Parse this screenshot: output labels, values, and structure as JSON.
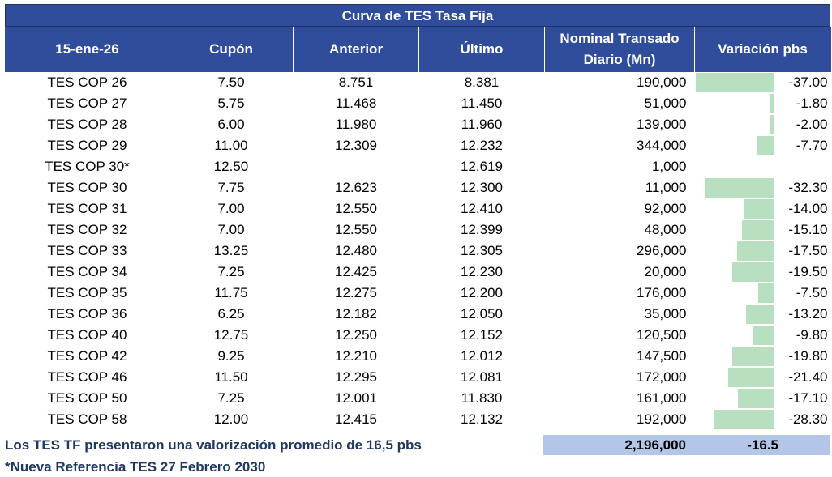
{
  "title": "Curva de TES Tasa Fija",
  "headers": {
    "date": "15-ene-26",
    "cupon": "Cupón",
    "anterior": "Anterior",
    "ultimo": "Último",
    "nominal_line1": "Nominal Transado",
    "nominal_line2": "Diario (Mn)",
    "variacion": "Variación pbs"
  },
  "rows": [
    {
      "name": "TES COP 26",
      "cupon": "7.50",
      "anterior": "8.751",
      "ultimo": "8.381",
      "nominal": "190,000",
      "variacion": "-37.00",
      "var_value": -37.0
    },
    {
      "name": "TES COP 27",
      "cupon": "5.75",
      "anterior": "11.468",
      "ultimo": "11.450",
      "nominal": "51,000",
      "variacion": "-1.80",
      "var_value": -1.8
    },
    {
      "name": "TES COP 28",
      "cupon": "6.00",
      "anterior": "11.980",
      "ultimo": "11.960",
      "nominal": "139,000",
      "variacion": "-2.00",
      "var_value": -2.0
    },
    {
      "name": "TES COP 29",
      "cupon": "11.00",
      "anterior": "12.309",
      "ultimo": "12.232",
      "nominal": "344,000",
      "variacion": "-7.70",
      "var_value": -7.7
    },
    {
      "name": "TES COP 30*",
      "cupon": "12.50",
      "anterior": "",
      "ultimo": "12.619",
      "nominal": "1,000",
      "variacion": "",
      "var_value": null
    },
    {
      "name": "TES COP 30",
      "cupon": "7.75",
      "anterior": "12.623",
      "ultimo": "12.300",
      "nominal": "11,000",
      "variacion": "-32.30",
      "var_value": -32.3
    },
    {
      "name": "TES COP 31",
      "cupon": "7.00",
      "anterior": "12.550",
      "ultimo": "12.410",
      "nominal": "92,000",
      "variacion": "-14.00",
      "var_value": -14.0
    },
    {
      "name": "TES COP 32",
      "cupon": "7.00",
      "anterior": "12.550",
      "ultimo": "12.399",
      "nominal": "48,000",
      "variacion": "-15.10",
      "var_value": -15.1
    },
    {
      "name": "TES COP 33",
      "cupon": "13.25",
      "anterior": "12.480",
      "ultimo": "12.305",
      "nominal": "296,000",
      "variacion": "-17.50",
      "var_value": -17.5
    },
    {
      "name": "TES COP 34",
      "cupon": "7.25",
      "anterior": "12.425",
      "ultimo": "12.230",
      "nominal": "20,000",
      "variacion": "-19.50",
      "var_value": -19.5
    },
    {
      "name": "TES COP 35",
      "cupon": "11.75",
      "anterior": "12.275",
      "ultimo": "12.200",
      "nominal": "176,000",
      "variacion": "-7.50",
      "var_value": -7.5
    },
    {
      "name": "TES COP 36",
      "cupon": "6.25",
      "anterior": "12.182",
      "ultimo": "12.050",
      "nominal": "35,000",
      "variacion": "-13.20",
      "var_value": -13.2
    },
    {
      "name": "TES COP 40",
      "cupon": "12.75",
      "anterior": "12.250",
      "ultimo": "12.152",
      "nominal": "120,500",
      "variacion": "-9.80",
      "var_value": -9.8
    },
    {
      "name": "TES COP 42",
      "cupon": "9.25",
      "anterior": "12.210",
      "ultimo": "12.012",
      "nominal": "147,500",
      "variacion": "-19.80",
      "var_value": -19.8
    },
    {
      "name": "TES COP 46",
      "cupon": "11.50",
      "anterior": "12.295",
      "ultimo": "12.081",
      "nominal": "172,000",
      "variacion": "-21.40",
      "var_value": -21.4
    },
    {
      "name": "TES COP 50",
      "cupon": "7.25",
      "anterior": "12.001",
      "ultimo": "11.830",
      "nominal": "161,000",
      "variacion": "-17.10",
      "var_value": -17.1
    },
    {
      "name": "TES COP 58",
      "cupon": "12.00",
      "anterior": "12.415",
      "ultimo": "12.132",
      "nominal": "192,000",
      "variacion": "-28.30",
      "var_value": -28.3
    }
  ],
  "summary": {
    "note": "Los TES TF presentaron una valorización promedio de 16,5 pbs",
    "total_nominal": "2,196,000",
    "avg_variacion": "-16.5"
  },
  "footnote": "*Nueva Referencia TES 27 Febrero 2030",
  "colors": {
    "header_bg": "#2f4d9a",
    "bar_fill": "#b9dfc1",
    "summary_bg": "#b4c6e7",
    "note_text": "#1f3864"
  }
}
